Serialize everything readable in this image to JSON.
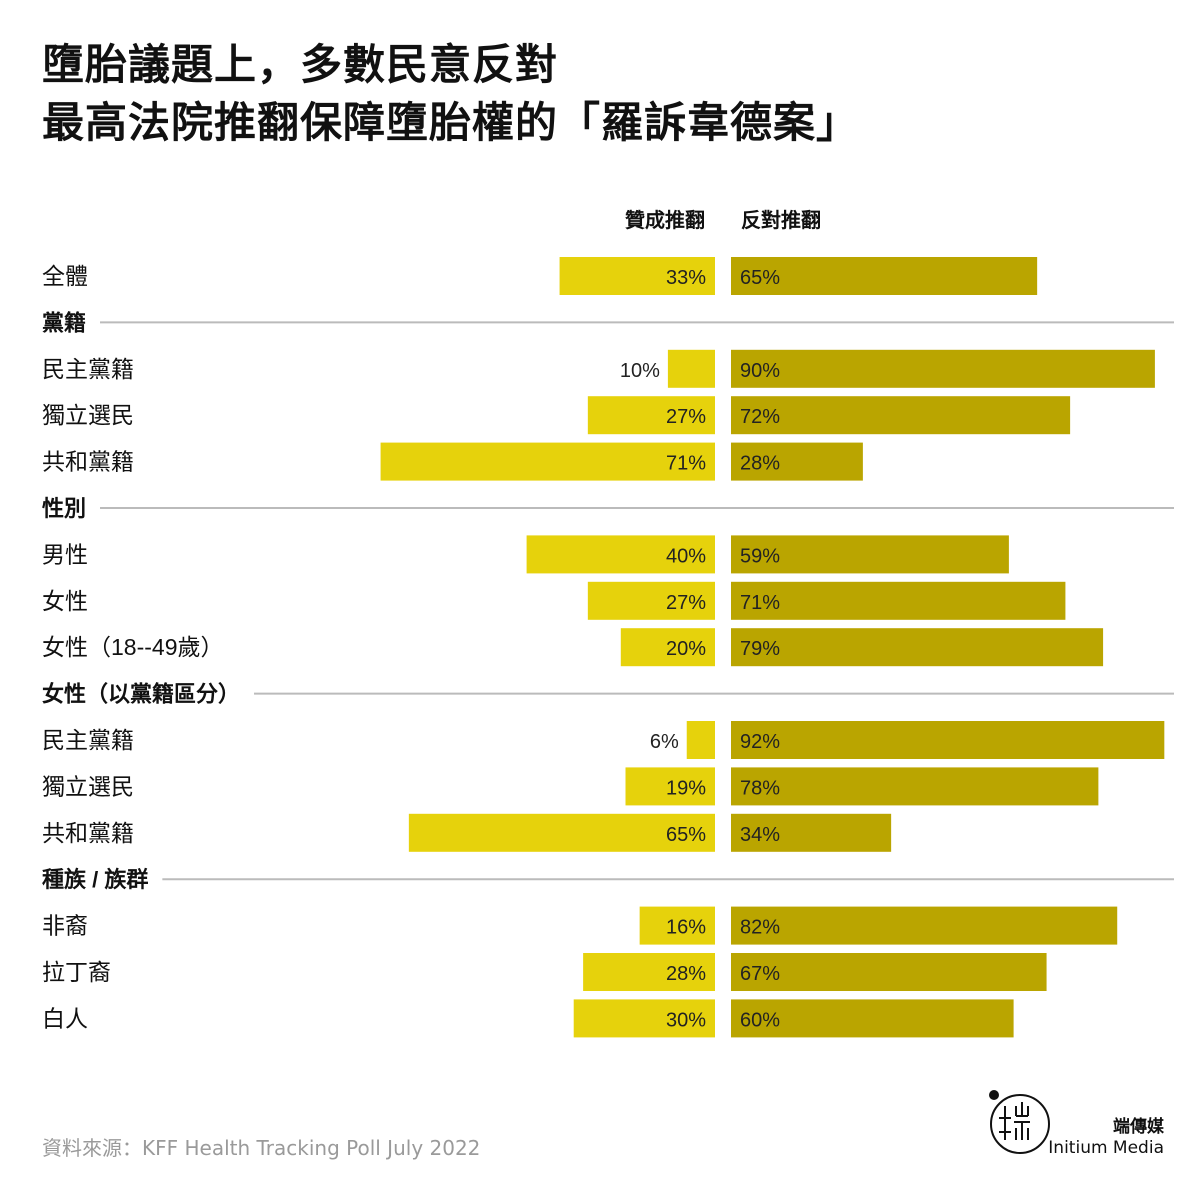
{
  "title": {
    "line1": "墮胎議題上，多數民意反對",
    "line2": "最高法院推翻保障墮胎權的「羅訴韋德案」"
  },
  "colors": {
    "support": "#e6d20c",
    "oppose": "#baa500",
    "divider": "#bbbbbb"
  },
  "chart_data": {
    "type": "bar",
    "orientation": "horizontal-diverging",
    "series": [
      {
        "name": "贊成推翻",
        "color": "#e6d20c"
      },
      {
        "name": "反對推翻",
        "color": "#baa500"
      }
    ],
    "rows": [
      {
        "kind": "item",
        "label": "全體",
        "support": 33,
        "oppose": 65
      },
      {
        "kind": "section",
        "label": "黨籍"
      },
      {
        "kind": "item",
        "label": "民主黨籍",
        "support": 10,
        "oppose": 90
      },
      {
        "kind": "item",
        "label": "獨立選民",
        "support": 27,
        "oppose": 72
      },
      {
        "kind": "item",
        "label": "共和黨籍",
        "support": 71,
        "oppose": 28
      },
      {
        "kind": "section",
        "label": "性別"
      },
      {
        "kind": "item",
        "label": "男性",
        "support": 40,
        "oppose": 59
      },
      {
        "kind": "item",
        "label": "女性",
        "support": 27,
        "oppose": 71
      },
      {
        "kind": "item",
        "label": "女性（18--49歲）",
        "support": 20,
        "oppose": 79
      },
      {
        "kind": "section",
        "label": "女性（以黨籍區分）"
      },
      {
        "kind": "item",
        "label": "民主黨籍",
        "support": 6,
        "oppose": 92
      },
      {
        "kind": "item",
        "label": "獨立選民",
        "support": 19,
        "oppose": 78
      },
      {
        "kind": "item",
        "label": "共和黨籍",
        "support": 65,
        "oppose": 34
      },
      {
        "kind": "section",
        "label": "種族 / 族群"
      },
      {
        "kind": "item",
        "label": "非裔",
        "support": 16,
        "oppose": 82
      },
      {
        "kind": "item",
        "label": "拉丁裔",
        "support": 28,
        "oppose": 67
      },
      {
        "kind": "item",
        "label": "白人",
        "support": 30,
        "oppose": 60
      }
    ]
  },
  "source": "資料來源：KFF Health Tracking Poll July 2022",
  "logo": {
    "name_cn": "端傳媒",
    "name_en": "Initium Media"
  }
}
